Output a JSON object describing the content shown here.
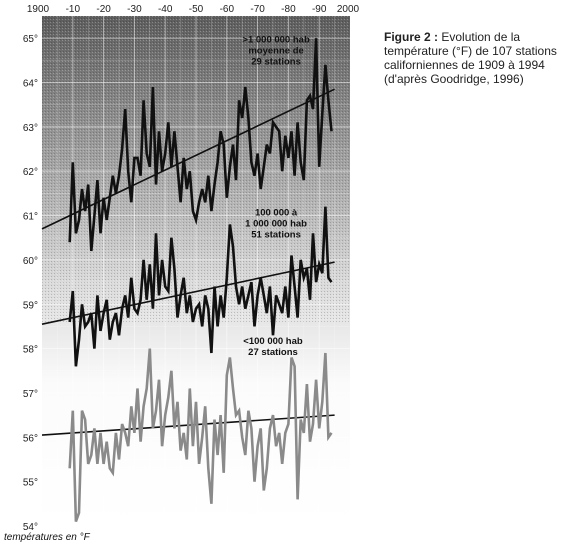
{
  "caption": {
    "label": "Figure 2 :",
    "text": "Evolution de la température (°F) de 107 stations californiennes de 1909 à 1994 (d'après Goodridge, 1996)"
  },
  "colors": {
    "bg_top": "#5d5d5d",
    "bg_bottom": "#ffffff",
    "series_dark": "#111111",
    "series_gray": "#8a8a8a",
    "trend": "#111111"
  },
  "chart_data": {
    "type": "line",
    "title": "",
    "xlabel": "",
    "ylabel": "températures en °F",
    "xlim": [
      1900,
      2000
    ],
    "ylim": [
      54,
      65.5
    ],
    "grid": true,
    "x_ticks_major": [
      "1900",
      "2000"
    ],
    "x_ticks_minor": [
      "-10",
      "-20",
      "-30",
      "-40",
      "-50",
      "-60",
      "-70",
      "-80",
      "-90"
    ],
    "y_ticks": [
      "54°",
      "55°",
      "56°",
      "57°",
      "58°",
      "59°",
      "60°",
      "61°",
      "62°",
      "63°",
      "64°",
      "65°"
    ],
    "series": [
      {
        "key": "large",
        "color": "#111111",
        "label_lines": [
          ">1 000 000 hab",
          "moyenne de",
          "29 stations"
        ],
        "label_anchor": [
          1976,
          64.9
        ],
        "x": [
          1909,
          1910,
          1911,
          1912,
          1913,
          1914,
          1915,
          1916,
          1917,
          1918,
          1919,
          1920,
          1921,
          1922,
          1923,
          1924,
          1925,
          1926,
          1927,
          1928,
          1929,
          1930,
          1931,
          1932,
          1933,
          1934,
          1935,
          1936,
          1937,
          1938,
          1939,
          1940,
          1941,
          1942,
          1943,
          1944,
          1945,
          1946,
          1947,
          1948,
          1949,
          1950,
          1951,
          1952,
          1953,
          1954,
          1955,
          1956,
          1957,
          1958,
          1959,
          1960,
          1961,
          1962,
          1963,
          1964,
          1965,
          1966,
          1967,
          1968,
          1969,
          1970,
          1971,
          1972,
          1973,
          1974,
          1975,
          1976,
          1977,
          1978,
          1979,
          1980,
          1981,
          1982,
          1983,
          1984,
          1985,
          1986,
          1987,
          1988,
          1989,
          1990,
          1991,
          1992,
          1993,
          1994
        ],
        "y": [
          60.4,
          62.2,
          60.6,
          60.9,
          61.6,
          61.1,
          61.7,
          60.2,
          61.0,
          61.8,
          60.6,
          61.4,
          60.9,
          61.4,
          61.9,
          61.5,
          61.9,
          62.5,
          63.4,
          62.0,
          61.3,
          62.3,
          62.3,
          61.9,
          63.6,
          62.4,
          62.1,
          63.9,
          61.7,
          62.9,
          62.0,
          62.4,
          63.1,
          62.1,
          62.9,
          62.1,
          61.3,
          62.3,
          61.6,
          62.0,
          61.1,
          60.9,
          61.3,
          61.6,
          61.3,
          61.9,
          61.1,
          61.7,
          62.2,
          62.9,
          62.6,
          61.4,
          62.1,
          62.6,
          61.8,
          63.6,
          63.2,
          63.9,
          63.2,
          62.2,
          61.9,
          62.4,
          61.6,
          62.1,
          62.6,
          62.4,
          63.1,
          63.0,
          62.9,
          62.0,
          62.8,
          62.3,
          62.9,
          61.9,
          63.1,
          62.2,
          61.8,
          63.6,
          63.7,
          63.4,
          65.0,
          62.1,
          63.3,
          64.4,
          63.6,
          62.9
        ],
        "trend": [
          60.7,
          63.85
        ]
      },
      {
        "key": "medium",
        "color": "#111111",
        "label_lines": [
          "100 000 à",
          "1 000 000 hab",
          "51 stations"
        ],
        "label_anchor": [
          1976,
          61.0
        ],
        "x": [
          1909,
          1910,
          1911,
          1912,
          1913,
          1914,
          1915,
          1916,
          1917,
          1918,
          1919,
          1920,
          1921,
          1922,
          1923,
          1924,
          1925,
          1926,
          1927,
          1928,
          1929,
          1930,
          1931,
          1932,
          1933,
          1934,
          1935,
          1936,
          1937,
          1938,
          1939,
          1940,
          1941,
          1942,
          1943,
          1944,
          1945,
          1946,
          1947,
          1948,
          1949,
          1950,
          1951,
          1952,
          1953,
          1954,
          1955,
          1956,
          1957,
          1958,
          1959,
          1960,
          1961,
          1962,
          1963,
          1964,
          1965,
          1966,
          1967,
          1968,
          1969,
          1970,
          1971,
          1972,
          1973,
          1974,
          1975,
          1976,
          1977,
          1978,
          1979,
          1980,
          1981,
          1982,
          1983,
          1984,
          1985,
          1986,
          1987,
          1988,
          1989,
          1990,
          1991,
          1992,
          1993,
          1994
        ],
        "y": [
          58.6,
          59.3,
          57.6,
          58.2,
          59.0,
          58.5,
          58.6,
          58.8,
          58.0,
          59.2,
          58.4,
          58.8,
          59.1,
          58.2,
          58.6,
          58.8,
          58.3,
          58.9,
          59.2,
          58.7,
          59.6,
          58.9,
          58.8,
          59.1,
          60.0,
          59.1,
          59.9,
          58.9,
          60.6,
          59.2,
          60.0,
          59.4,
          59.3,
          60.5,
          59.8,
          58.7,
          59.2,
          59.6,
          58.8,
          59.2,
          58.6,
          58.9,
          59.0,
          58.5,
          59.2,
          58.9,
          57.9,
          59.4,
          58.5,
          59.2,
          58.7,
          59.6,
          60.8,
          60.3,
          59.4,
          59.0,
          59.4,
          58.9,
          59.2,
          59.5,
          58.5,
          59.2,
          59.6,
          59.2,
          58.8,
          59.4,
          58.3,
          59.2,
          59.0,
          58.8,
          59.4,
          58.7,
          60.1,
          59.4,
          58.7,
          60.0,
          59.6,
          59.8,
          59.1,
          60.6,
          59.5,
          59.9,
          59.7,
          61.2,
          59.6,
          59.5
        ],
        "trend": [
          58.55,
          59.95
        ]
      },
      {
        "key": "small",
        "color": "#8a8a8a",
        "label_lines": [
          "<100 000 hab",
          "27 stations"
        ],
        "label_anchor": [
          1975,
          58.1
        ],
        "x": [
          1909,
          1910,
          1911,
          1912,
          1913,
          1914,
          1915,
          1916,
          1917,
          1918,
          1919,
          1920,
          1921,
          1922,
          1923,
          1924,
          1925,
          1926,
          1927,
          1928,
          1929,
          1930,
          1931,
          1932,
          1933,
          1934,
          1935,
          1936,
          1937,
          1938,
          1939,
          1940,
          1941,
          1942,
          1943,
          1944,
          1945,
          1946,
          1947,
          1948,
          1949,
          1950,
          1951,
          1952,
          1953,
          1954,
          1955,
          1956,
          1957,
          1958,
          1959,
          1960,
          1961,
          1962,
          1963,
          1964,
          1965,
          1966,
          1967,
          1968,
          1969,
          1970,
          1971,
          1972,
          1973,
          1974,
          1975,
          1976,
          1977,
          1978,
          1979,
          1980,
          1981,
          1982,
          1983,
          1984,
          1985,
          1986,
          1987,
          1988,
          1989,
          1990,
          1991,
          1992,
          1993,
          1994
        ],
        "y": [
          55.3,
          56.6,
          54.1,
          54.3,
          56.6,
          56.4,
          55.4,
          55.6,
          56.2,
          55.4,
          56.1,
          55.4,
          55.9,
          55.3,
          55.2,
          56.1,
          55.5,
          56.3,
          56.1,
          55.8,
          56.7,
          56.1,
          57.1,
          55.9,
          56.7,
          57.1,
          58.0,
          56.2,
          56.6,
          57.3,
          55.8,
          56.5,
          56.9,
          57.5,
          56.2,
          56.8,
          55.7,
          56.1,
          55.5,
          57.1,
          55.8,
          56.8,
          55.4,
          56.0,
          56.7,
          55.3,
          54.5,
          56.4,
          55.6,
          56.5,
          55.2,
          57.4,
          57.8,
          57.1,
          56.5,
          56.6,
          56.0,
          55.6,
          56.6,
          56.2,
          55.0,
          55.8,
          56.2,
          54.8,
          55.3,
          56.2,
          56.5,
          55.8,
          56.1,
          55.4,
          56.1,
          56.3,
          57.8,
          57.6,
          54.6,
          56.4,
          56.1,
          57.2,
          55.9,
          56.3,
          57.3,
          56.2,
          56.8,
          57.9,
          56.0,
          56.1
        ],
        "trend": [
          56.05,
          56.5
        ]
      }
    ]
  }
}
